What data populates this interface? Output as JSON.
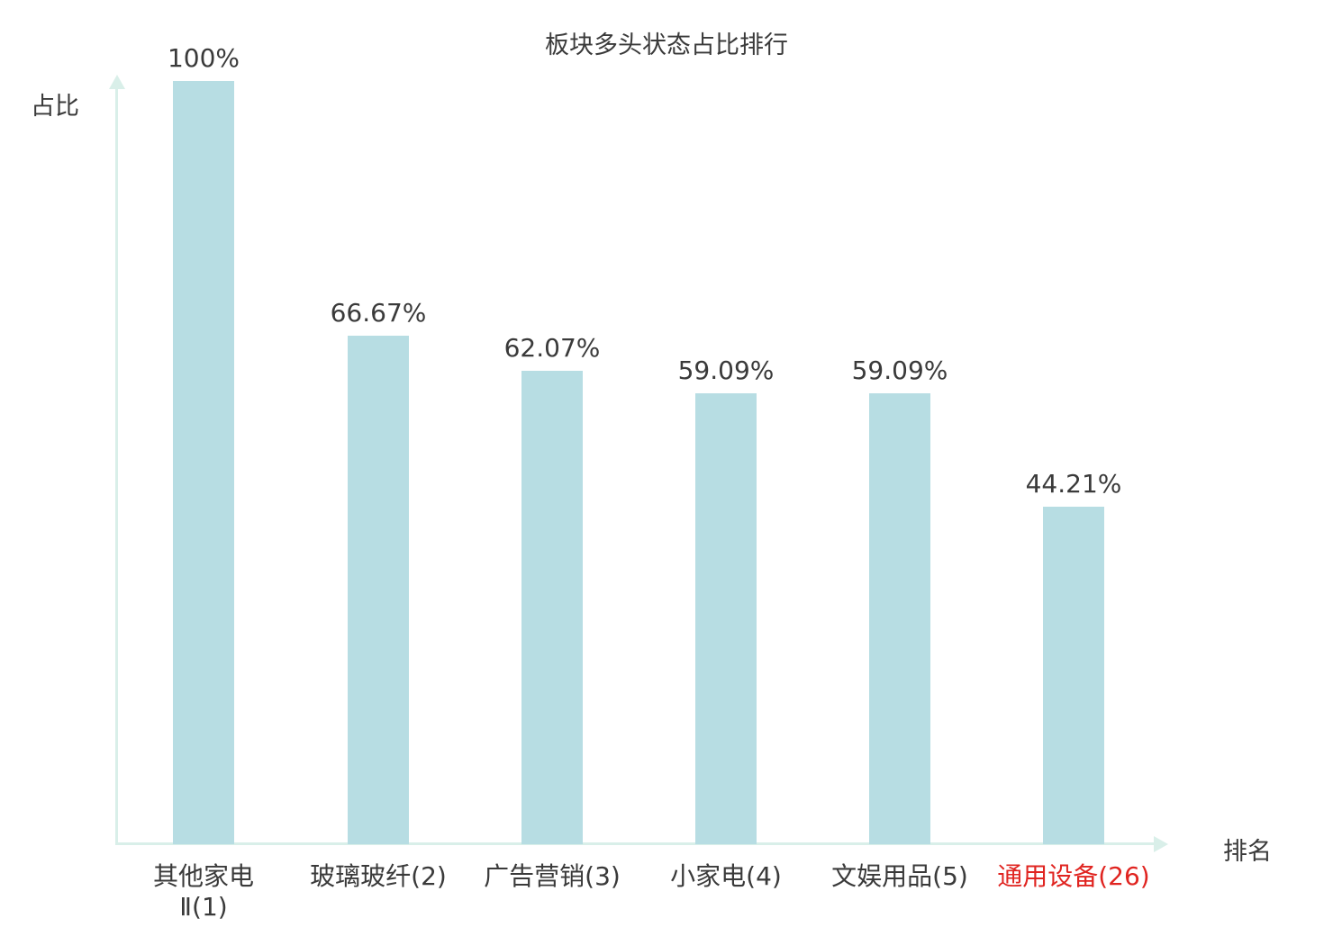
{
  "chart_data": {
    "type": "bar",
    "title": "板块多头状态占比排行",
    "xlabel": "排名",
    "ylabel": "占比",
    "ylim": [
      0,
      100
    ],
    "categories": [
      "其他家电\nⅡ(1)",
      "玻璃玻纤(2)",
      "广告营销(3)",
      "小家电(4)",
      "文娱用品(5)",
      "通用设备(26)"
    ],
    "values": [
      100,
      66.67,
      62.07,
      59.09,
      59.09,
      44.21
    ],
    "value_labels": [
      "100%",
      "66.67%",
      "62.07%",
      "59.09%",
      "59.09%",
      "44.21%"
    ],
    "bar_color": "#b7dde3",
    "axis_color": "#d9efe9",
    "text_color": "#3a3a3a",
    "highlight_category_index": 5,
    "highlight_color": "#e02420",
    "legend": "none",
    "grid": "off"
  }
}
